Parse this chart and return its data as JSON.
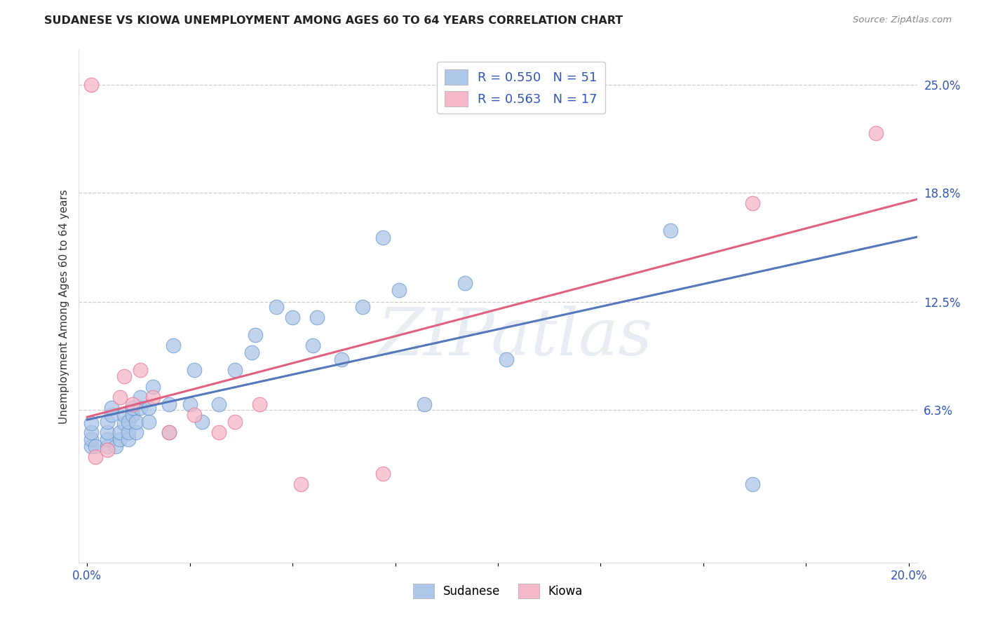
{
  "title": "SUDANESE VS KIOWA UNEMPLOYMENT AMONG AGES 60 TO 64 YEARS CORRELATION CHART",
  "source": "Source: ZipAtlas.com",
  "ylabel": "Unemployment Among Ages 60 to 64 years",
  "xlim": [
    -0.002,
    0.202
  ],
  "ylim": [
    -0.025,
    0.27
  ],
  "xticks": [
    0.0,
    0.025,
    0.05,
    0.075,
    0.1,
    0.125,
    0.15,
    0.175,
    0.2
  ],
  "xtick_labels": [
    "0.0%",
    "",
    "",
    "",
    "",
    "",
    "",
    "",
    "20.0%"
  ],
  "ytick_labels_right": [
    "25.0%",
    "18.8%",
    "12.5%",
    "6.3%"
  ],
  "ytick_positions_right": [
    0.25,
    0.188,
    0.125,
    0.063
  ],
  "sudanese_r": "0.550",
  "sudanese_n": "51",
  "kiowa_r": "0.563",
  "kiowa_n": "17",
  "sudanese_color": "#aec6e8",
  "kiowa_color": "#f5b8c8",
  "sudanese_edge_color": "#6699cc",
  "kiowa_edge_color": "#e87090",
  "sudanese_line_color": "#5577bb",
  "kiowa_line_color": "#e06080",
  "dashed_line_color": "#aabbcc",
  "legend_text_color": "#3355bb",
  "background_color": "#ffffff",
  "watermark": "ZIPatlas",
  "sudanese_x": [
    0.001,
    0.001,
    0.001,
    0.001,
    0.002,
    0.005,
    0.005,
    0.005,
    0.005,
    0.006,
    0.006,
    0.007,
    0.008,
    0.008,
    0.009,
    0.009,
    0.01,
    0.01,
    0.01,
    0.011,
    0.011,
    0.012,
    0.012,
    0.013,
    0.013,
    0.015,
    0.015,
    0.016,
    0.02,
    0.02,
    0.021,
    0.025,
    0.026,
    0.028,
    0.032,
    0.036,
    0.04,
    0.041,
    0.046,
    0.05,
    0.055,
    0.056,
    0.062,
    0.067,
    0.072,
    0.076,
    0.082,
    0.092,
    0.102,
    0.142,
    0.162
  ],
  "sudanese_y": [
    0.042,
    0.046,
    0.05,
    0.055,
    0.042,
    0.042,
    0.046,
    0.05,
    0.056,
    0.06,
    0.064,
    0.042,
    0.046,
    0.05,
    0.055,
    0.06,
    0.046,
    0.05,
    0.056,
    0.06,
    0.064,
    0.05,
    0.056,
    0.064,
    0.07,
    0.056,
    0.064,
    0.076,
    0.05,
    0.066,
    0.1,
    0.066,
    0.086,
    0.056,
    0.066,
    0.086,
    0.096,
    0.106,
    0.122,
    0.116,
    0.1,
    0.116,
    0.092,
    0.122,
    0.162,
    0.132,
    0.066,
    0.136,
    0.092,
    0.166,
    0.02
  ],
  "kiowa_x": [
    0.001,
    0.002,
    0.005,
    0.008,
    0.009,
    0.011,
    0.013,
    0.016,
    0.02,
    0.026,
    0.032,
    0.036,
    0.042,
    0.052,
    0.072,
    0.162,
    0.192
  ],
  "kiowa_y": [
    0.25,
    0.036,
    0.04,
    0.07,
    0.082,
    0.066,
    0.086,
    0.07,
    0.05,
    0.06,
    0.05,
    0.056,
    0.066,
    0.02,
    0.026,
    0.182,
    0.222
  ]
}
